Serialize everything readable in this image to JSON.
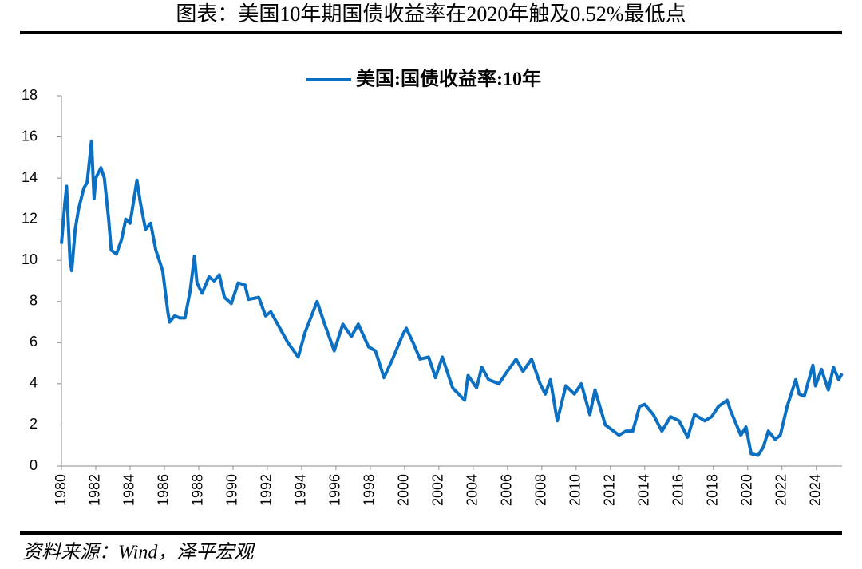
{
  "chart_data": {
    "type": "line",
    "title": "图表：美国10年期国债收益率在2020年触及0.52%最低点",
    "source": "资料来源：Wind，泽平宏观",
    "x": [
      1980.0,
      1980.2,
      1980.3,
      1980.5,
      1980.6,
      1980.8,
      1981.0,
      1981.3,
      1981.5,
      1981.75,
      1981.9,
      1982.0,
      1982.3,
      1982.5,
      1982.75,
      1982.9,
      1983.2,
      1983.5,
      1983.75,
      1984.0,
      1984.4,
      1984.6,
      1984.9,
      1985.2,
      1985.5,
      1985.9,
      1986.2,
      1986.3,
      1986.6,
      1986.9,
      1987.2,
      1987.5,
      1987.75,
      1987.9,
      1988.2,
      1988.6,
      1988.9,
      1989.2,
      1989.5,
      1989.9,
      1990.3,
      1990.7,
      1990.9,
      1991.5,
      1991.9,
      1992.2,
      1992.8,
      1993.2,
      1993.8,
      1994.2,
      1994.9,
      1995.3,
      1995.9,
      1996.4,
      1996.9,
      1997.3,
      1997.9,
      1998.3,
      1998.8,
      1999.3,
      1999.9,
      2000.1,
      2000.5,
      2000.9,
      2001.4,
      2001.8,
      2002.2,
      2002.8,
      2003.5,
      2003.7,
      2004.2,
      2004.5,
      2004.9,
      2005.5,
      2005.9,
      2006.5,
      2006.9,
      2007.4,
      2007.9,
      2008.2,
      2008.5,
      2008.9,
      2009.4,
      2009.9,
      2010.3,
      2010.8,
      2011.1,
      2011.7,
      2012.5,
      2012.9,
      2013.3,
      2013.7,
      2014.0,
      2014.5,
      2015.0,
      2015.5,
      2016.0,
      2016.5,
      2016.9,
      2017.5,
      2017.9,
      2018.3,
      2018.8,
      2019.0,
      2019.6,
      2019.9,
      2020.2,
      2020.6,
      2020.9,
      2021.2,
      2021.6,
      2021.9,
      2022.3,
      2022.8,
      2023.0,
      2023.3,
      2023.8,
      2023.95,
      2024.3,
      2024.7,
      2025.0,
      2025.3,
      2025.5
    ],
    "series": [
      {
        "name": "美国:国债收益率:10年",
        "color": "#0b70c2",
        "values": [
          10.8,
          12.8,
          13.6,
          10.0,
          9.5,
          11.5,
          12.5,
          13.5,
          13.8,
          15.8,
          13.0,
          14.0,
          14.5,
          14.0,
          12.0,
          10.5,
          10.3,
          11.0,
          12.0,
          11.8,
          13.9,
          12.8,
          11.5,
          11.8,
          10.5,
          9.5,
          7.5,
          7.0,
          7.3,
          7.2,
          7.2,
          8.5,
          10.2,
          8.9,
          8.4,
          9.2,
          9.0,
          9.3,
          8.2,
          7.9,
          8.9,
          8.8,
          8.1,
          8.2,
          7.3,
          7.5,
          6.6,
          6.0,
          5.3,
          6.5,
          8.0,
          7.0,
          5.6,
          6.9,
          6.3,
          6.9,
          5.8,
          5.6,
          4.3,
          5.2,
          6.4,
          6.7,
          6.0,
          5.2,
          5.3,
          4.3,
          5.3,
          3.8,
          3.2,
          4.4,
          3.8,
          4.8,
          4.2,
          4.0,
          4.5,
          5.2,
          4.6,
          5.2,
          4.0,
          3.5,
          4.2,
          2.2,
          3.9,
          3.5,
          4.0,
          2.5,
          3.7,
          2.0,
          1.5,
          1.7,
          1.7,
          2.9,
          3.0,
          2.5,
          1.7,
          2.4,
          2.2,
          1.4,
          2.5,
          2.2,
          2.4,
          2.9,
          3.2,
          2.7,
          1.5,
          1.9,
          0.6,
          0.52,
          0.9,
          1.7,
          1.3,
          1.5,
          2.9,
          4.2,
          3.5,
          3.4,
          4.9,
          3.9,
          4.7,
          3.7,
          4.8,
          4.2,
          4.5
        ]
      }
    ],
    "xlim": [
      1980,
      2025.5
    ],
    "xticks": [
      1980,
      1982,
      1984,
      1986,
      1988,
      1990,
      1992,
      1994,
      1996,
      1998,
      2000,
      2002,
      2004,
      2006,
      2008,
      2010,
      2012,
      2014,
      2016,
      2018,
      2020,
      2022,
      2024
    ],
    "ylim": [
      0,
      18
    ],
    "yticks": [
      0,
      2,
      4,
      6,
      8,
      10,
      12,
      14,
      16,
      18
    ],
    "legend": "top"
  }
}
